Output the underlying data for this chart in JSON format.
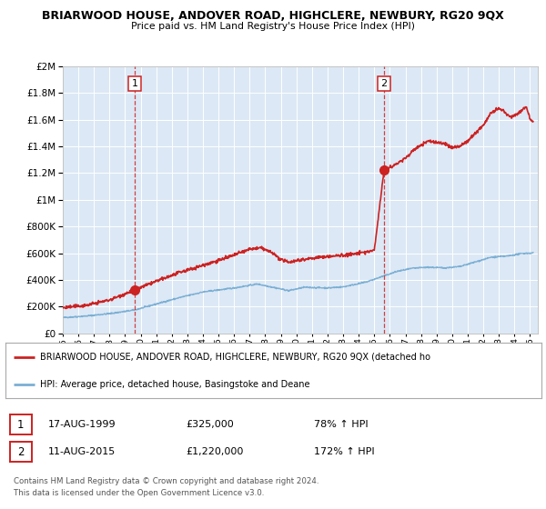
{
  "title_line1": "BRIARWOOD HOUSE, ANDOVER ROAD, HIGHCLERE, NEWBURY, RG20 9QX",
  "title_line2": "Price paid vs. HM Land Registry's House Price Index (HPI)",
  "ylim": [
    0,
    2000000
  ],
  "xlim_start": 1995.0,
  "xlim_end": 2025.5,
  "hpi_color": "#7bafd4",
  "price_color": "#cc2222",
  "sale1_year": 1999.62,
  "sale1_price": 325000,
  "sale2_year": 2015.62,
  "sale2_price": 1220000,
  "legend_label1": "BRIARWOOD HOUSE, ANDOVER ROAD, HIGHCLERE, NEWBURY, RG20 9QX (detached ho",
  "legend_label2": "HPI: Average price, detached house, Basingstoke and Deane",
  "table_row1_date": "17-AUG-1999",
  "table_row1_price": "£325,000",
  "table_row1_hpi": "78% ↑ HPI",
  "table_row2_date": "11-AUG-2015",
  "table_row2_price": "£1,220,000",
  "table_row2_hpi": "172% ↑ HPI",
  "footnote1": "Contains HM Land Registry data © Crown copyright and database right 2024.",
  "footnote2": "This data is licensed under the Open Government Licence v3.0.",
  "background_color": "#ffffff",
  "plot_bg_color": "#dce8f5",
  "grid_color": "#ffffff"
}
